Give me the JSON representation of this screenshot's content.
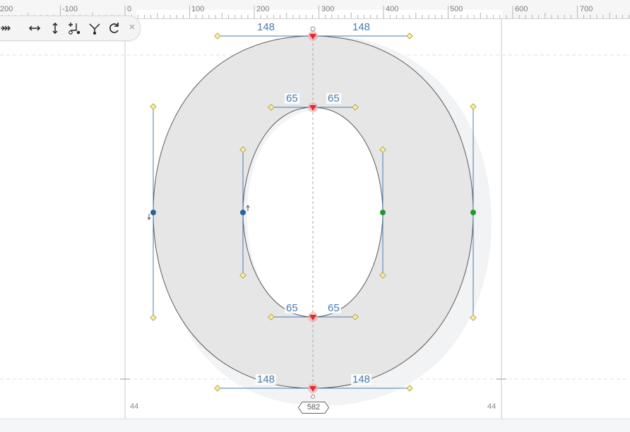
{
  "ruler": {
    "labels": [
      "200",
      "-100",
      "0",
      "100",
      "200",
      "300",
      "400",
      "500",
      "600",
      "700"
    ]
  },
  "toolbar": {
    "tools": [
      {
        "name": "expand-icon",
        "label": ">>>"
      },
      {
        "name": "flip-horizontal-icon",
        "label": "↔"
      },
      {
        "name": "flip-vertical-icon",
        "label": "↕"
      },
      {
        "name": "add-node-icon",
        "label": "+node"
      },
      {
        "name": "merge-icon",
        "label": "merge"
      },
      {
        "name": "rotate-icon",
        "label": "rotate"
      }
    ],
    "close_label": "×"
  },
  "dimensions": {
    "outer_top_left": "148",
    "outer_top_right": "148",
    "inner_top_left": "65",
    "inner_top_right": "65",
    "inner_bottom_left": "65",
    "inner_bottom_right": "65",
    "outer_bottom_left": "148",
    "outer_bottom_right": "148"
  },
  "metrics": {
    "left_sidebearing": "44",
    "right_sidebearing": "44",
    "advance_width": "582"
  },
  "colors": {
    "glyph_fill": "#e6e6e6",
    "handle_line": "#4a7bb0",
    "node_blue": "#2a6496",
    "node_green": "#1f9a2f",
    "handle_yellow": "#f2e28a",
    "extremum_red": "#e02828"
  }
}
